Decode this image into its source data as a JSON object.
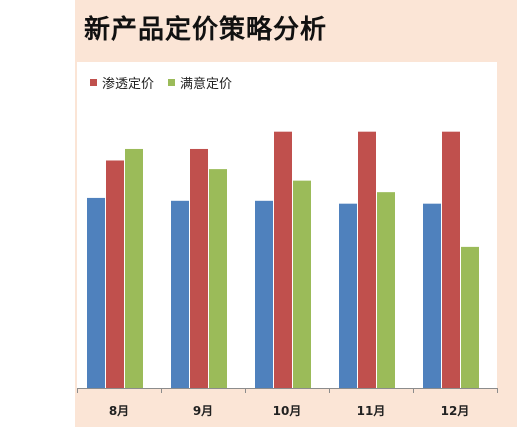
{
  "chart_data": {
    "type": "bar",
    "title": "新产品定价策略分析",
    "categories": [
      "8月",
      "9月",
      "10月",
      "11月",
      "12月"
    ],
    "series": [
      {
        "key": "base",
        "values": [
          66,
          65,
          65,
          64,
          64
        ],
        "color": "#4f81bd"
      },
      {
        "name": "渗透定价",
        "values": [
          79,
          83,
          89,
          89,
          89
        ],
        "color": "#c0504d"
      },
      {
        "name": "满意定价",
        "values": [
          83,
          76,
          72,
          68,
          49
        ],
        "color": "#9bbb59"
      }
    ],
    "ylim": [
      0,
      100
    ],
    "grid": false,
    "legend_position": "top-left"
  }
}
